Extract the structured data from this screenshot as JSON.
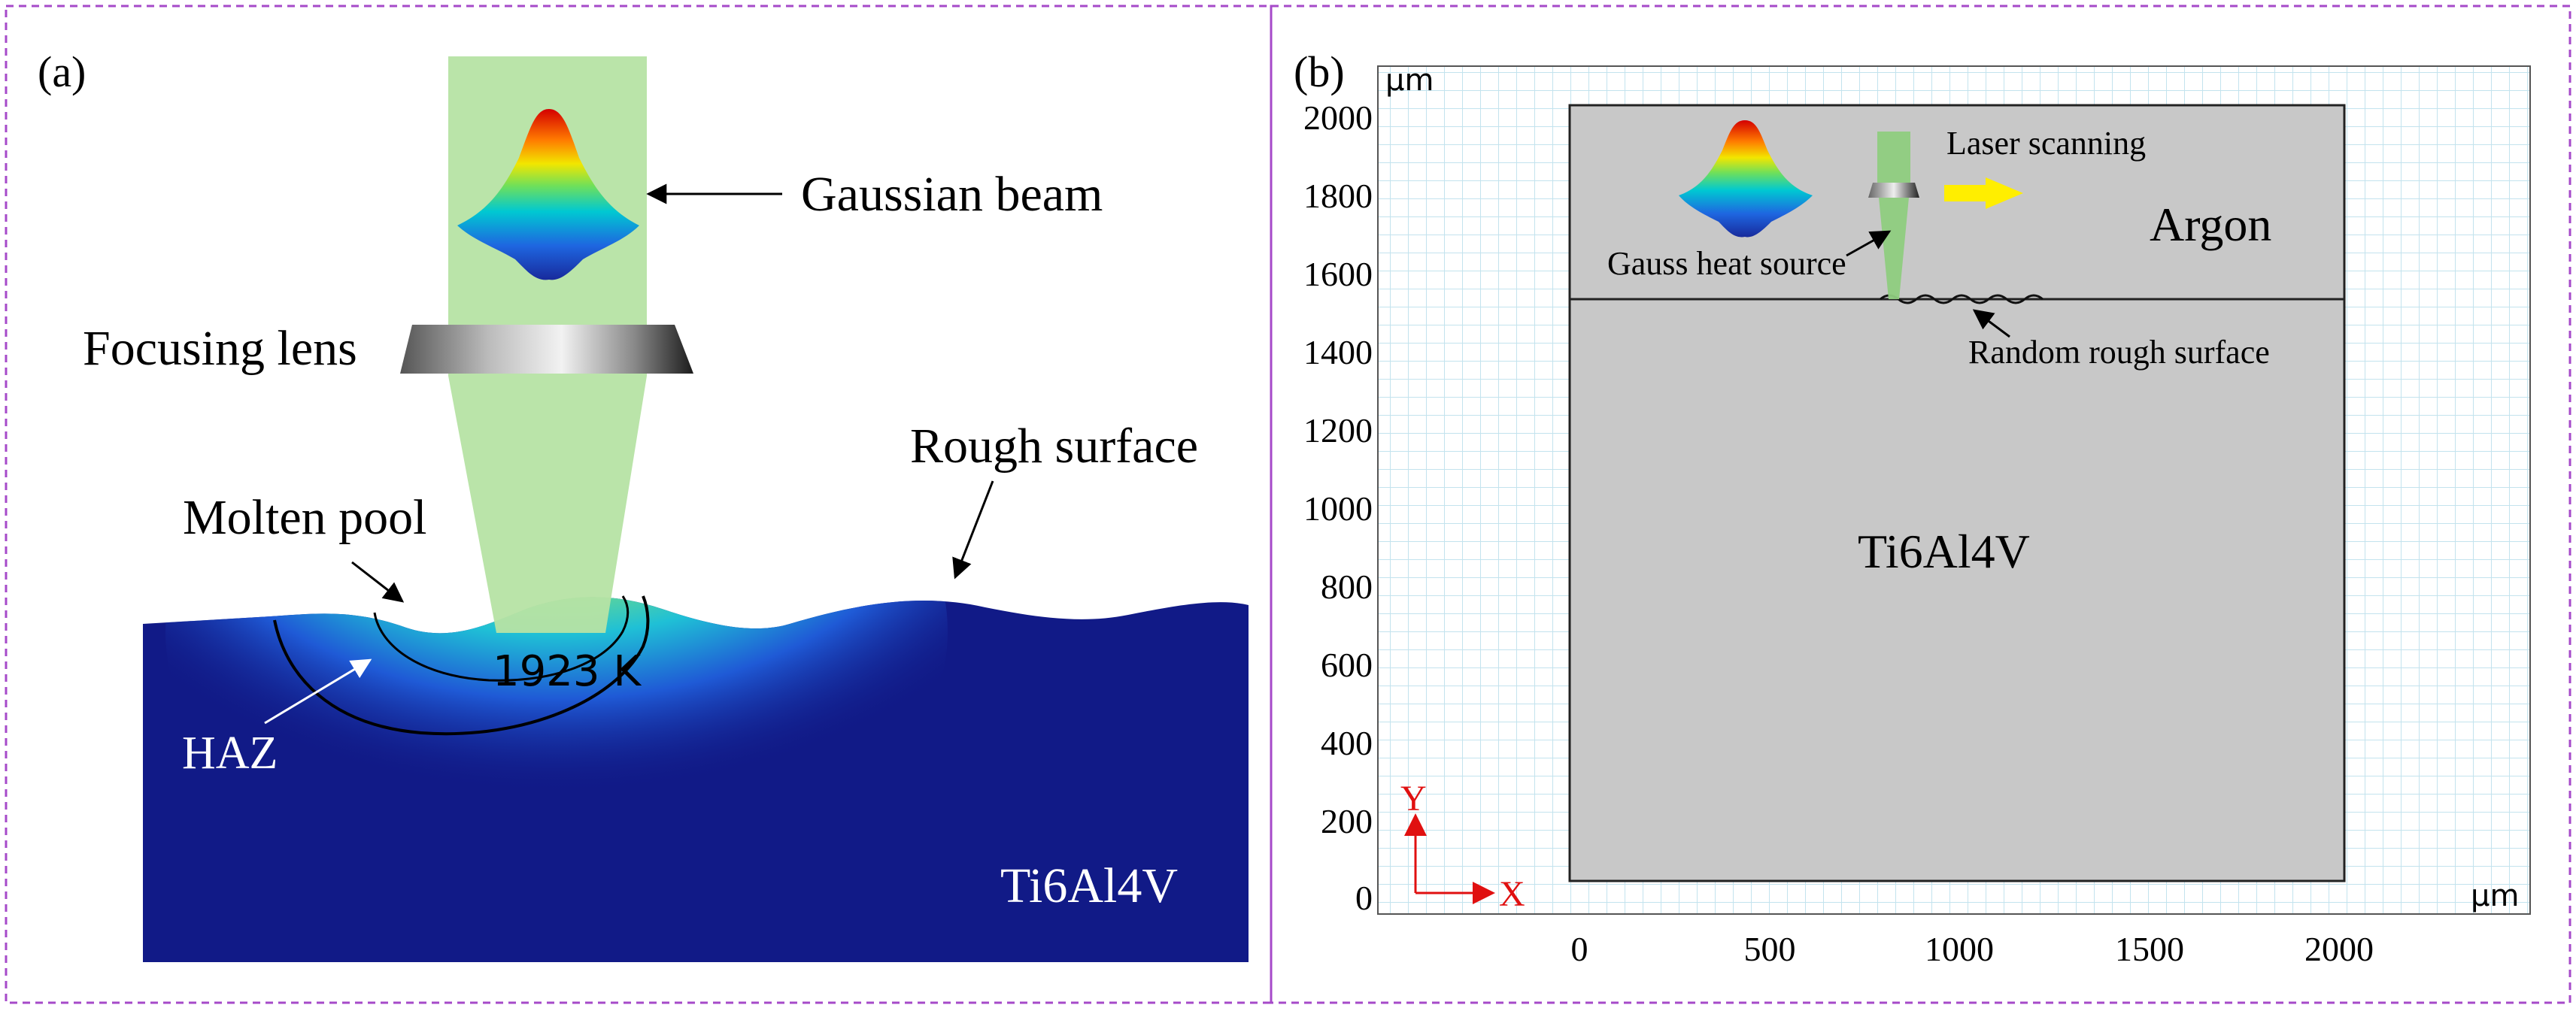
{
  "panel_a": {
    "label": "(a)",
    "gaussian_beam": "Gaussian beam",
    "focusing_lens": "Focusing lens",
    "rough_surface": "Rough surface",
    "molten_pool": "Molten pool",
    "haz": "HAZ",
    "temperature": "1923 K",
    "material": "Ti6Al4V"
  },
  "panel_b": {
    "label": "(b)",
    "unit_y": "μm",
    "unit_x": "μm",
    "laser_scanning": "Laser scanning",
    "argon": "Argon",
    "gauss_heat_source": "Gauss heat source",
    "random_rough_surface": "Random rough surface",
    "material": "Ti6Al4V",
    "axis_y_label": "Y",
    "axis_x_label": "X",
    "y_ticks": [
      "2000",
      "1800",
      "1600",
      "1400",
      "1200",
      "1000",
      "800",
      "600",
      "400",
      "200",
      "0"
    ],
    "x_ticks": [
      "0",
      "500",
      "1000",
      "1500",
      "2000"
    ]
  },
  "colors": {
    "border": "#a64ac9",
    "substrate": "#111a87",
    "beam": "#b6e3a4",
    "grid": "#cbe6ef",
    "domain": "#c8c8c8",
    "arrow_yellow": "#ffee00",
    "axis_red": "#e01010"
  }
}
